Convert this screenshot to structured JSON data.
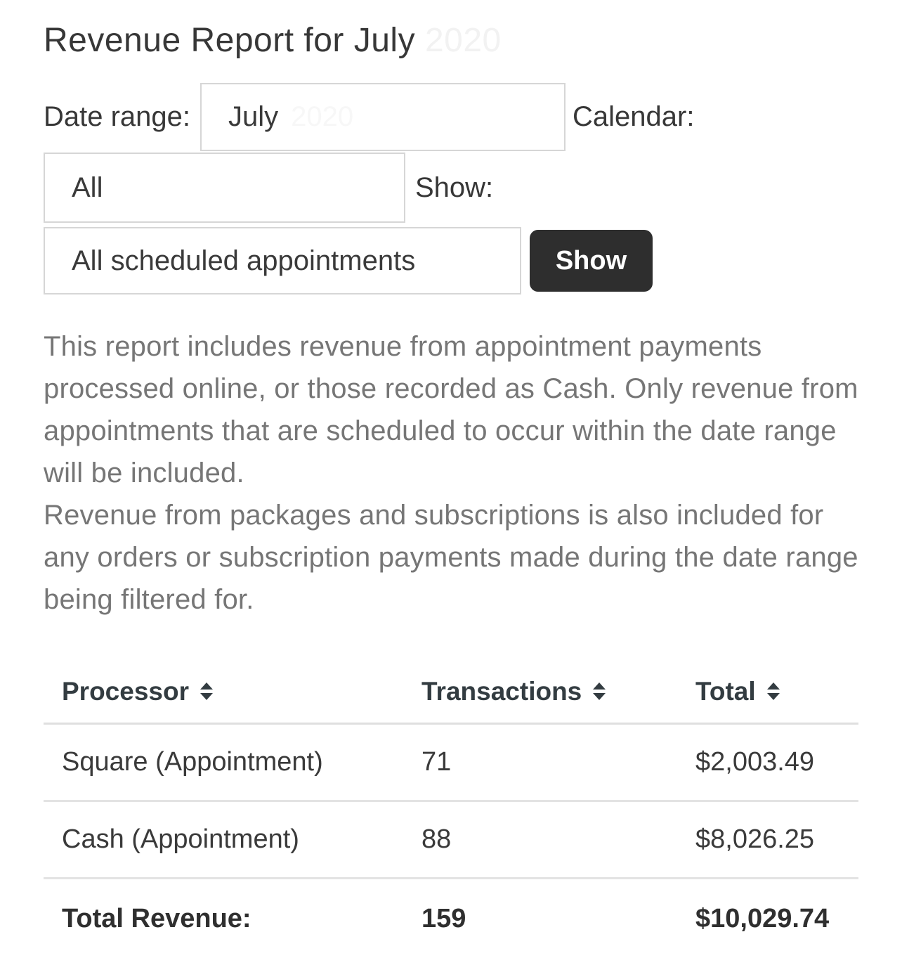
{
  "page": {
    "title": "Revenue Report for July",
    "title_redacted_year": "2020"
  },
  "filters": {
    "date_range_label": "Date range:",
    "date_range_value": "July",
    "date_range_redacted_year": "2020",
    "calendar_label": "Calendar:",
    "calendar_value": "All",
    "show_label": "Show:",
    "show_value": "All scheduled appointments",
    "show_button_label": "Show"
  },
  "description": {
    "paragraph1": "This report includes revenue from appointment payments processed online, or those recorded as Cash. Only revenue from appointments that are scheduled to occur within the date range will be included.",
    "paragraph2": "Revenue from packages and subscriptions is also included for any orders or subscription payments made during the date range being filtered for."
  },
  "table": {
    "columns": [
      "Processor",
      "Transactions",
      "Total"
    ],
    "rows": [
      {
        "processor": "Square (Appointment)",
        "transactions": "71",
        "total": "$2,003.49"
      },
      {
        "processor": "Cash (Appointment)",
        "transactions": "88",
        "total": "$8,026.25"
      }
    ],
    "footer": {
      "processor": "Total Revenue:",
      "transactions": "159",
      "total": "$10,029.74"
    }
  },
  "colors": {
    "accent_button": "#2e2e2e",
    "body_text": "#373737",
    "muted_text": "#767676",
    "border": "#d6d6d6",
    "divider": "#e0e0e0"
  }
}
